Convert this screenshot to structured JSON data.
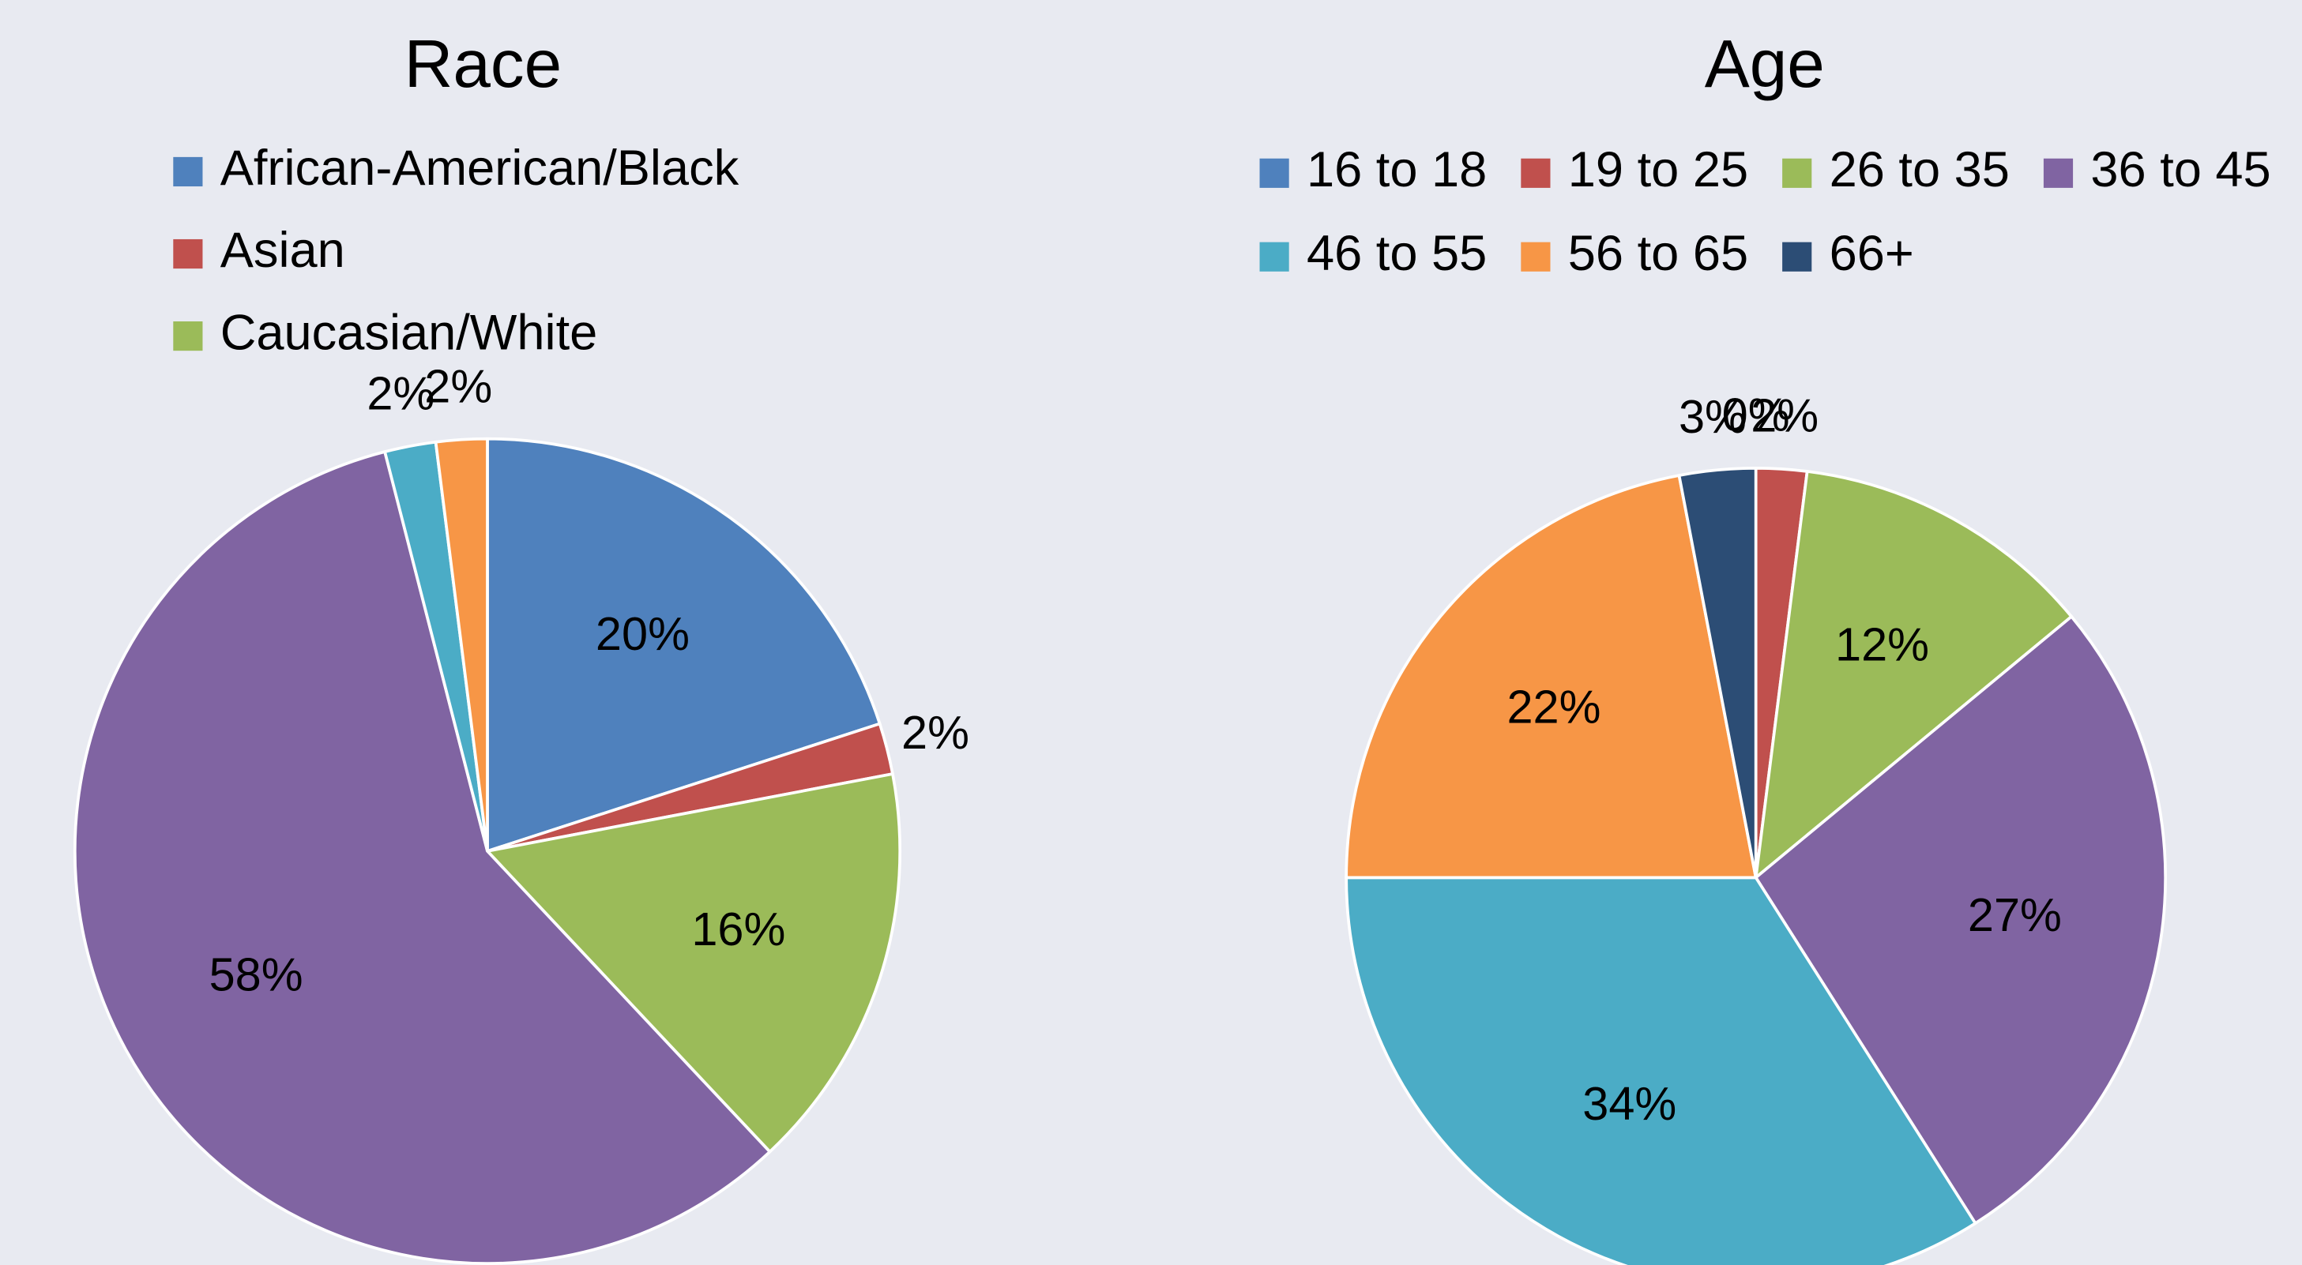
{
  "chart_data": [
    {
      "type": "pie",
      "title": "Race",
      "categories": [
        "African-American/Black",
        "Asian",
        "Caucasian/White",
        null,
        null,
        null
      ],
      "values": [
        20,
        2,
        16,
        58,
        2,
        2
      ],
      "value_labels": [
        "20%",
        "2%",
        "16%",
        "58%",
        "2%",
        "2%"
      ],
      "colors": [
        "#4f81bd",
        "#c0504d",
        "#9bbb59",
        "#8064a2",
        "#4bacc6",
        "#f79646"
      ]
    },
    {
      "type": "pie",
      "title": "Age",
      "categories": [
        "16 to 18",
        "19 to 25",
        "26 to 35",
        "36 to 45",
        "46 to 55",
        "56 to 65",
        "66+"
      ],
      "values": [
        0,
        2,
        12,
        27,
        34,
        22,
        3
      ],
      "value_labels": [
        "0%",
        "2%",
        "12%",
        "27%",
        "34%",
        "22%",
        "3%"
      ],
      "colors": [
        "#4f81bd",
        "#c0504d",
        "#9bbb59",
        "#8064a2",
        "#4bacc6",
        "#f79646",
        "#2c4d75"
      ]
    }
  ]
}
